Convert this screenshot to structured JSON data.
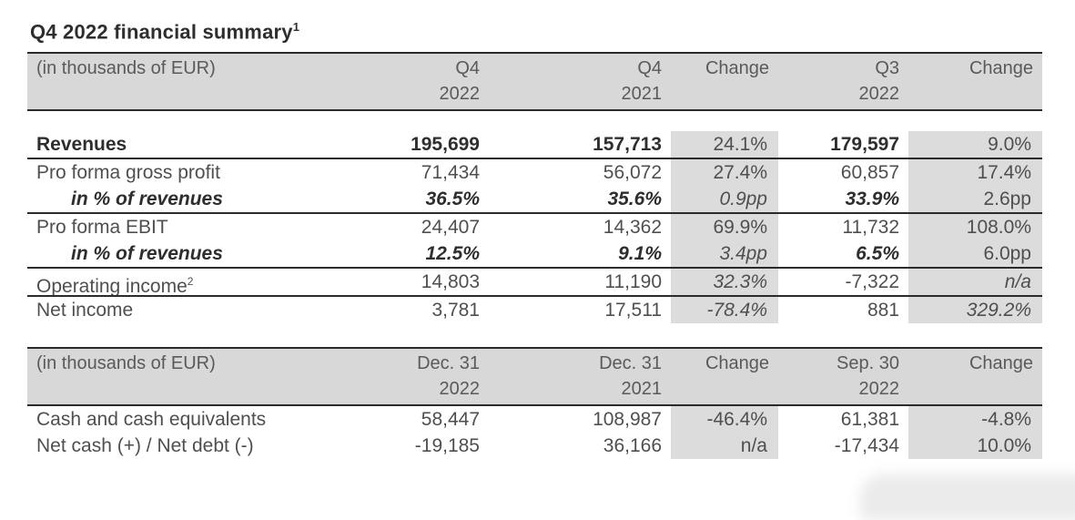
{
  "page": {
    "title": "Q4 2022 financial summary",
    "title_footnote": "1"
  },
  "colors": {
    "header_bg": "#d8d8d8",
    "change_cell_bg": "#dcdcdd",
    "rule": "#2b2b2b",
    "text": "#4f4f4f",
    "text_bold": "#2e2e2e"
  },
  "income_table": {
    "unit_label": "(in thousands of EUR)",
    "columns": {
      "q4_2022": {
        "line1": "Q4",
        "line2": "2022"
      },
      "q4_2021": {
        "line1": "Q4",
        "line2": "2021"
      },
      "change_yoy": {
        "line1": "Change",
        "line2": ""
      },
      "q3_2022": {
        "line1": "Q3",
        "line2": "2022"
      },
      "change_qoq": {
        "line1": "Change",
        "line2": ""
      }
    },
    "rows": [
      {
        "label": "Revenues",
        "q4_2022": "195,699",
        "q4_2021": "157,713",
        "change_yoy": "24.1%",
        "q3_2022": "179,597",
        "change_qoq": "9.0%"
      },
      {
        "label": "Pro forma gross profit",
        "q4_2022": "71,434",
        "q4_2021": "56,072",
        "change_yoy": "27.4%",
        "q3_2022": "60,857",
        "change_qoq": "17.4%"
      },
      {
        "label": "in % of revenues",
        "q4_2022": "36.5%",
        "q4_2021": "35.6%",
        "change_yoy": "0.9pp",
        "q3_2022": "33.9%",
        "change_qoq": "2.6pp"
      },
      {
        "label": "Pro forma EBIT",
        "q4_2022": "24,407",
        "q4_2021": "14,362",
        "change_yoy": "69.9%",
        "q3_2022": "11,732",
        "change_qoq": "108.0%"
      },
      {
        "label": "in % of revenues",
        "q4_2022": "12.5%",
        "q4_2021": "9.1%",
        "change_yoy": "3.4pp",
        "q3_2022": "6.5%",
        "change_qoq": "6.0pp"
      },
      {
        "label": "Operating income",
        "label_footnote": "2",
        "q4_2022": "14,803",
        "q4_2021": "11,190",
        "change_yoy": "32.3%",
        "q3_2022": "-7,322",
        "change_qoq": "n/a"
      },
      {
        "label": "Net income",
        "q4_2022": "3,781",
        "q4_2021": "17,511",
        "change_yoy": "-78.4%",
        "q3_2022": "881",
        "change_qoq": "329.2%"
      }
    ]
  },
  "cash_table": {
    "unit_label": "(in thousands of EUR)",
    "columns": {
      "dec31_2022": {
        "line1": "Dec. 31",
        "line2": "2022"
      },
      "dec31_2021": {
        "line1": "Dec. 31",
        "line2": "2021"
      },
      "change_yoy": {
        "line1": "Change",
        "line2": ""
      },
      "sep30_2022": {
        "line1": "Sep. 30",
        "line2": "2022"
      },
      "change_qoq": {
        "line1": "Change",
        "line2": ""
      }
    },
    "rows": [
      {
        "label": "Cash and cash equivalents",
        "dec31_2022": "58,447",
        "dec31_2021": "108,987",
        "change_yoy": "-46.4%",
        "sep30_2022": "61,381",
        "change_qoq": "-4.8%"
      },
      {
        "label": "Net cash (+) / Net debt (-)",
        "dec31_2022": "-19,185",
        "dec31_2021": "36,166",
        "change_yoy": "n/a",
        "sep30_2022": "-17,434",
        "change_qoq": "10.0%"
      }
    ]
  }
}
